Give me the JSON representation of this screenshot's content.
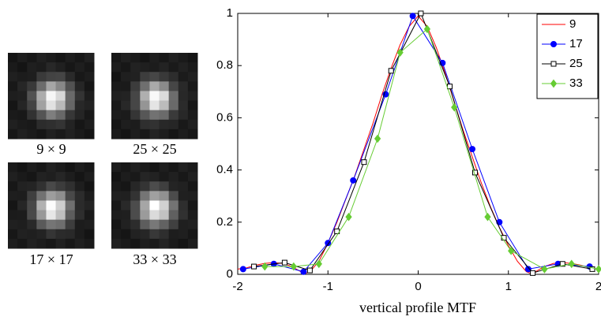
{
  "thumbnails": [
    "9 × 9",
    "25 × 25",
    "17 × 17",
    "33 × 33"
  ],
  "chart_data": {
    "type": "line",
    "xlabel": "vertical profile MTF",
    "xlim": [
      -2,
      2
    ],
    "ylim": [
      0,
      1
    ],
    "xticks": [
      -2,
      -1,
      0,
      1,
      2
    ],
    "yticks": [
      0,
      0.2,
      0.4,
      0.6,
      0.8,
      1
    ],
    "legend": "top-right",
    "series": [
      {
        "name": "9",
        "color": "#ff0000",
        "marker": "none",
        "x": [
          -2,
          -1.9,
          -1.8,
          -1.7,
          -1.6,
          -1.5,
          -1.4,
          -1.3,
          -1.25,
          -1.2,
          -1.1,
          -1,
          -0.9,
          -0.8,
          -0.7,
          -0.6,
          -0.5,
          -0.4,
          -0.3,
          -0.2,
          -0.1,
          0,
          0.1,
          0.2,
          0.3,
          0.4,
          0.5,
          0.6,
          0.7,
          0.8,
          0.9,
          1,
          1.1,
          1.2,
          1.25,
          1.3,
          1.4,
          1.5,
          1.6,
          1.7,
          1.8,
          1.9,
          2
        ],
        "values": [
          0.02,
          0.025,
          0.035,
          0.042,
          0.045,
          0.042,
          0.03,
          0.01,
          0.003,
          0.01,
          0.05,
          0.12,
          0.2,
          0.29,
          0.38,
          0.48,
          0.58,
          0.69,
          0.79,
          0.88,
          0.95,
          0.99,
          0.95,
          0.87,
          0.77,
          0.66,
          0.55,
          0.45,
          0.35,
          0.26,
          0.18,
          0.11,
          0.05,
          0.01,
          0.003,
          0.01,
          0.03,
          0.042,
          0.045,
          0.042,
          0.035,
          0.025,
          0.02
        ]
      },
      {
        "name": "17",
        "color": "#0000ff",
        "marker": "circle",
        "x": [
          -1.94,
          -1.6,
          -1.27,
          -1,
          -0.72,
          -0.36,
          -0.06,
          0.27,
          0.6,
          0.9,
          1.22,
          1.55,
          1.9
        ],
        "values": [
          0.02,
          0.04,
          0.01,
          0.12,
          0.36,
          0.69,
          0.99,
          0.81,
          0.48,
          0.2,
          0.02,
          0.04,
          0.03
        ]
      },
      {
        "name": "25",
        "color": "#000000",
        "marker": "square",
        "x": [
          -1.82,
          -1.48,
          -1.2,
          -0.9,
          -0.6,
          -0.3,
          0.03,
          0.35,
          0.63,
          0.95,
          1.27,
          1.6,
          1.93
        ],
        "values": [
          0.03,
          0.045,
          0.015,
          0.165,
          0.43,
          0.78,
          1,
          0.72,
          0.39,
          0.14,
          0.005,
          0.04,
          0.02
        ]
      },
      {
        "name": "33",
        "color": "#66cc33",
        "marker": "diamond",
        "x": [
          -1.7,
          -1.38,
          -1.1,
          -0.77,
          -0.45,
          -0.2,
          0.1,
          0.4,
          0.77,
          1.03,
          1.4,
          1.7,
          2
        ],
        "values": [
          0.03,
          0.03,
          0.04,
          0.22,
          0.52,
          0.85,
          0.94,
          0.64,
          0.22,
          0.09,
          0.02,
          0.04,
          0.02
        ]
      }
    ]
  }
}
